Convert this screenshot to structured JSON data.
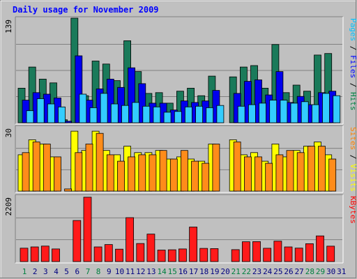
{
  "chart_data": {
    "type": "bar",
    "title": "Daily usage for November 2009",
    "days": [
      "1",
      "2",
      "3",
      "4",
      "5",
      "6",
      "7",
      "8",
      "9",
      "10",
      "11",
      "12",
      "13",
      "14",
      "15",
      "16",
      "17",
      "18",
      "19",
      "20",
      "21",
      "22",
      "23",
      "24",
      "25",
      "26",
      "27",
      "28",
      "29",
      "30",
      "31"
    ],
    "weekend_days": [
      "1",
      "7",
      "8",
      "14",
      "15",
      "21",
      "22",
      "28",
      "29"
    ],
    "panels": [
      {
        "id": "hits_files_pages",
        "y_max_label": "139",
        "ylim": [
          0,
          139
        ],
        "labels": [
          {
            "text": "Pages",
            "color": "#00c0ff"
          },
          {
            "text": " / ",
            "color": "#000000"
          },
          {
            "text": "Files",
            "color": "#0000ff"
          },
          {
            "text": " / ",
            "color": "#000000"
          },
          {
            "text": "Hits",
            "color": "#008040"
          }
        ],
        "series": [
          {
            "name": "Hits",
            "color": "#1a7a5a",
            "values": [
              46,
              74,
              58,
              53,
              4,
              139,
              36,
              82,
              78,
              56,
              109,
              68,
              39,
              40,
              26,
              42,
              46,
              36,
              62,
              0,
              61,
              74,
              76,
              46,
              104,
              40,
              50,
              42,
              90,
              92,
              0
            ]
          },
          {
            "name": "Files",
            "color": "#0000ee",
            "values": [
              30,
              40,
              38,
              33,
              2,
              89,
              30,
              45,
              58,
              47,
              73,
              52,
              26,
              26,
              17,
              29,
              27,
              29,
              43,
              0,
              39,
              55,
              57,
              37,
              68,
              27,
              35,
              24,
              40,
              42,
              0
            ]
          },
          {
            "name": "Pages",
            "color": "#33ccff",
            "values": [
              16,
              32,
              25,
              21,
              0,
              38,
              20,
              39,
              25,
              23,
              27,
              22,
              21,
              14,
              15,
              21,
              22,
              20,
              23,
              0,
              22,
              24,
              26,
              30,
              30,
              26,
              28,
              24,
              39,
              36,
              0
            ]
          }
        ]
      },
      {
        "id": "visits_sites",
        "y_max_label": "30",
        "ylim": [
          0,
          30
        ],
        "labels": [
          {
            "text": "Sites",
            "color": "#ff8000"
          },
          {
            "text": " / ",
            "color": "#000000"
          },
          {
            "text": "Visits",
            "color": "#ffff00"
          }
        ],
        "series": [
          {
            "name": "Visits",
            "color": "#ffff00",
            "values": [
              17,
              24,
              22,
              16,
              0,
              28,
              19,
              28,
              19,
              17,
              21,
              18,
              18,
              19,
              15,
              16,
              15,
              14,
              22,
              0,
              24,
              17,
              18,
              14,
              22,
              16,
              19,
              21,
              23,
              17,
              0
            ]
          },
          {
            "name": "Sites",
            "color": "#ff8c1a",
            "values": [
              18,
              23,
              22,
              16,
              1,
              18,
              22,
              27,
              17,
              14,
              16,
              17,
              17,
              19,
              15,
              19,
              14,
              13,
              22,
              0,
              23,
              16,
              16,
              13,
              17,
              19,
              18,
              21,
              21,
              15,
              0
            ]
          }
        ]
      },
      {
        "id": "kbytes",
        "y_max_label": "2209",
        "ylim": [
          0,
          2209
        ],
        "labels": [
          {
            "text": "KBytes",
            "color": "#ff0000"
          }
        ],
        "series": [
          {
            "name": "KBytes",
            "color": "#ff1a1a",
            "values": [
              452,
              494,
              521,
              426,
              0,
              1385,
              2170,
              493,
              573,
              418,
              1480,
              608,
              926,
              388,
              398,
              426,
              1164,
              445,
              436,
              0,
              402,
              668,
              671,
              449,
              688,
              494,
              454,
              602,
              865,
              520,
              0
            ]
          }
        ]
      }
    ]
  }
}
